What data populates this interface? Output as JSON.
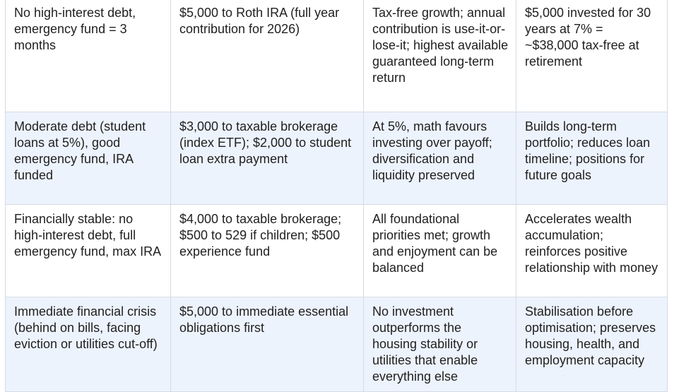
{
  "table": {
    "rows": [
      {
        "cells": [
          "No high-interest debt, emergency fund = 3 months",
          "$5,000 to Roth IRA (full year contribution for 2026)",
          "Tax-free growth; annual contribution is use-it-or-lose-it; highest available guaranteed long-term return",
          "$5,000 invested for 30 years at 7% = ~$38,000 tax-free at retirement"
        ]
      },
      {
        "cells": [
          "Moderate debt (student loans at 5%), good emergency fund, IRA funded",
          "$3,000 to taxable brokerage (index ETF); $2,000 to student loan extra payment",
          "At 5%, math favours investing over payoff; diversification and liquidity preserved",
          "Builds long-term portfolio; reduces loan timeline; positions for future goals"
        ]
      },
      {
        "cells": [
          "Financially stable: no high-interest debt, full emergency fund, max IRA",
          "$4,000 to taxable brokerage; $500 to 529 if children; $500 experience fund",
          "All foundational priorities met; growth and enjoyment can be balanced",
          "Accelerates wealth accumulation; reinforces positive relationship with money"
        ]
      },
      {
        "cells": [
          "Immediate financial crisis (behind on bills, facing eviction or utilities cut-off)",
          "$5,000 to immediate essential obligations first",
          "No investment outperforms the housing stability or utilities that enable everything else",
          "Stabilisation before optimisation; preserves housing, health, and employment capacity"
        ]
      }
    ]
  }
}
